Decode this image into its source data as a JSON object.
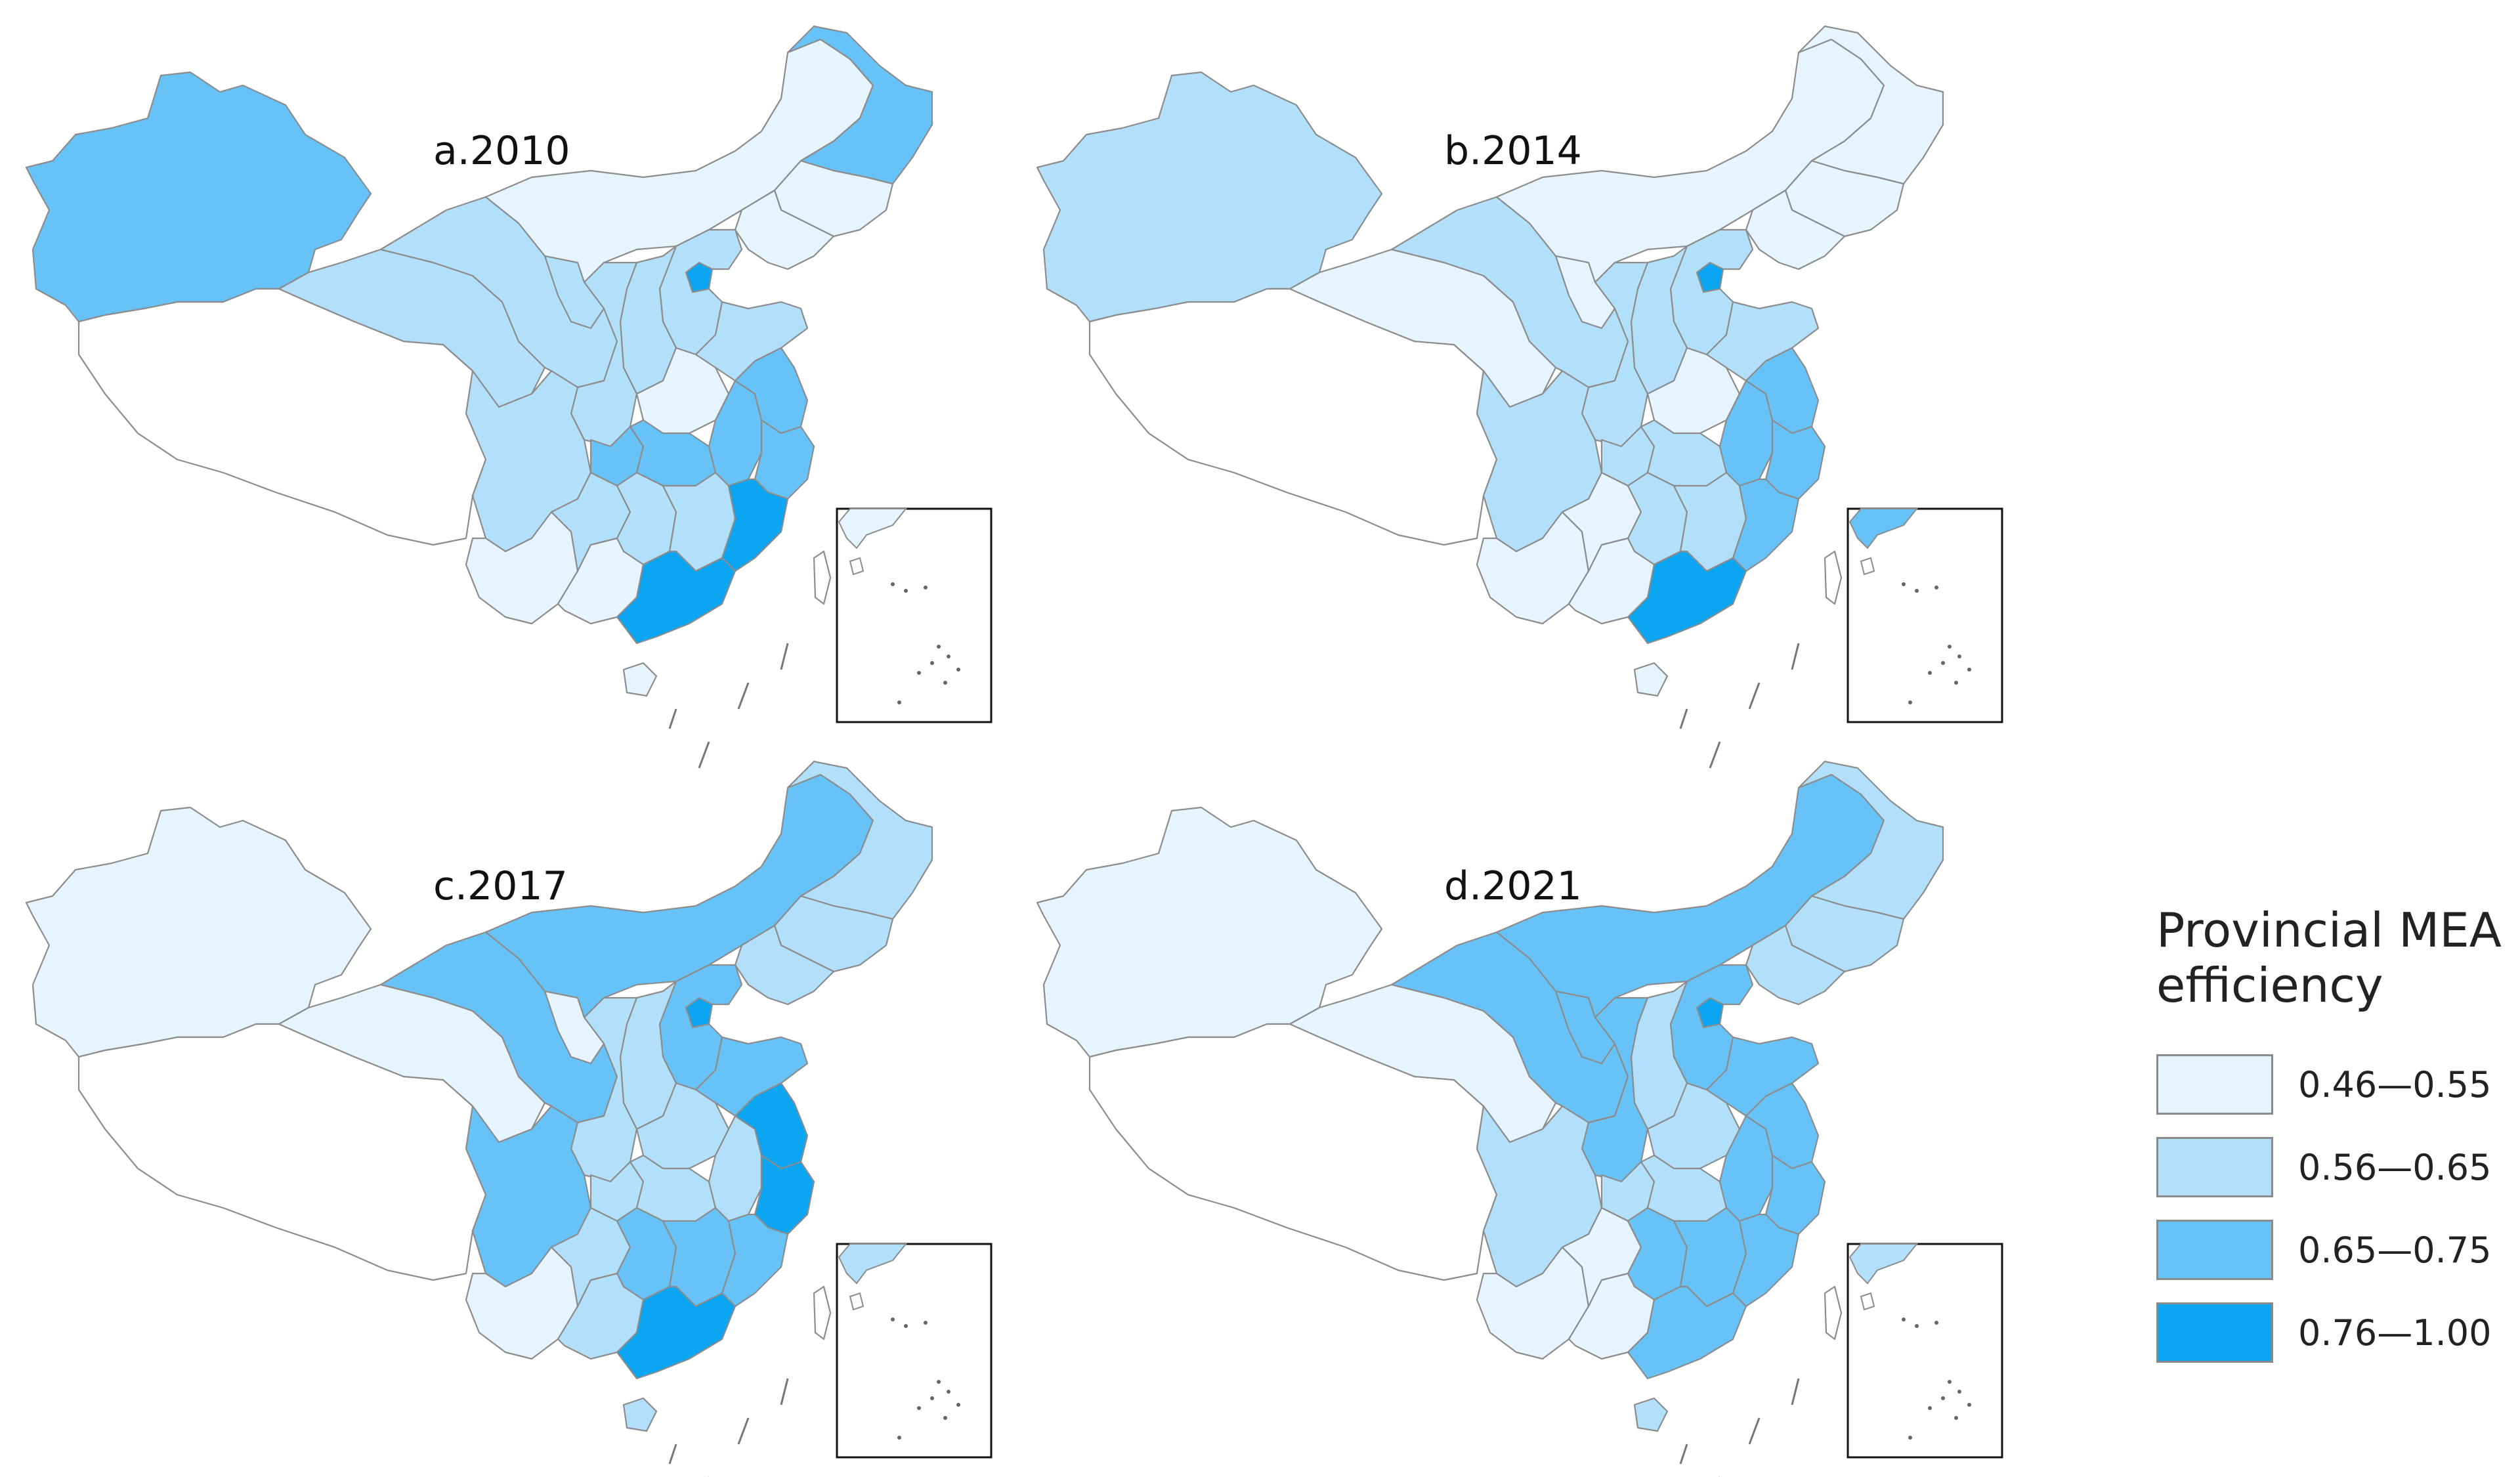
{
  "panels": [
    {
      "title": "a.2010",
      "values": {
        "xinjiang": 3,
        "tibet": 0,
        "qinghai": 2,
        "gansu": 2,
        "inner_mongolia": 1,
        "heilongjiang": 3,
        "jilin": 1,
        "liaoning": 1,
        "beijing": 4,
        "hebei": 2,
        "shanxi": 2,
        "shaanxi": 2,
        "ningxia": 2,
        "henan": 1,
        "shandong": 2,
        "sichuan": 2,
        "chongqing": 3,
        "hubei": 3,
        "anhui": 3,
        "jiangsu": 3,
        "zhejiang": 3,
        "yunnan": 1,
        "guizhou": 2,
        "hunan": 2,
        "jiangxi": 2,
        "fujian": 4,
        "guangxi": 1,
        "guangdong": 4,
        "hainan": 1,
        "taiwan": 0,
        "inset_korea": 1
      }
    },
    {
      "title": "b.2014",
      "values": {
        "xinjiang": 2,
        "tibet": 0,
        "qinghai": 1,
        "gansu": 2,
        "inner_mongolia": 1,
        "heilongjiang": 1,
        "jilin": 1,
        "liaoning": 1,
        "beijing": 4,
        "hebei": 2,
        "shanxi": 2,
        "shaanxi": 2,
        "ningxia": 1,
        "henan": 1,
        "shandong": 2,
        "sichuan": 2,
        "chongqing": 2,
        "hubei": 2,
        "anhui": 3,
        "jiangsu": 3,
        "zhejiang": 3,
        "yunnan": 1,
        "guizhou": 1,
        "hunan": 2,
        "jiangxi": 2,
        "fujian": 3,
        "guangxi": 1,
        "guangdong": 4,
        "hainan": 1,
        "taiwan": 0,
        "inset_korea": 3
      }
    },
    {
      "title": "c.2017",
      "values": {
        "xinjiang": 1,
        "tibet": 0,
        "qinghai": 1,
        "gansu": 3,
        "inner_mongolia": 3,
        "heilongjiang": 2,
        "jilin": 2,
        "liaoning": 2,
        "beijing": 4,
        "hebei": 3,
        "shanxi": 2,
        "shaanxi": 2,
        "ningxia": 1,
        "henan": 2,
        "shandong": 3,
        "sichuan": 3,
        "chongqing": 2,
        "hubei": 2,
        "anhui": 2,
        "jiangsu": 4,
        "zhejiang": 4,
        "yunnan": 1,
        "guizhou": 2,
        "hunan": 3,
        "jiangxi": 3,
        "fujian": 3,
        "guangxi": 2,
        "guangdong": 4,
        "hainan": 2,
        "taiwan": 0,
        "inset_korea": 2
      }
    },
    {
      "title": "d.2021",
      "values": {
        "xinjiang": 1,
        "tibet": 0,
        "qinghai": 1,
        "gansu": 3,
        "inner_mongolia": 3,
        "heilongjiang": 2,
        "jilin": 2,
        "liaoning": 2,
        "beijing": 4,
        "hebei": 3,
        "shanxi": 2,
        "shaanxi": 3,
        "ningxia": 3,
        "henan": 2,
        "shandong": 3,
        "sichuan": 2,
        "chongqing": 2,
        "hubei": 2,
        "anhui": 3,
        "jiangsu": 3,
        "zhejiang": 3,
        "yunnan": 1,
        "guizhou": 1,
        "hunan": 3,
        "jiangxi": 3,
        "fujian": 3,
        "guangxi": 1,
        "guangdong": 3,
        "hainan": 2,
        "taiwan": 0,
        "inset_korea": 2
      }
    }
  ],
  "legend": {
    "title_line1": "Provincial MEA",
    "title_line2": "efficiency",
    "classes": [
      {
        "label": "0.46—0.55",
        "color": "#e5f4fd"
      },
      {
        "label": "0.56—0.65",
        "color": "#b2e0fa"
      },
      {
        "label": "0.65—0.75",
        "color": "#66c2f7"
      },
      {
        "label": "0.76—1.00",
        "color": "#0ba5f2"
      }
    ],
    "no_data_color": "#ffffff"
  }
}
